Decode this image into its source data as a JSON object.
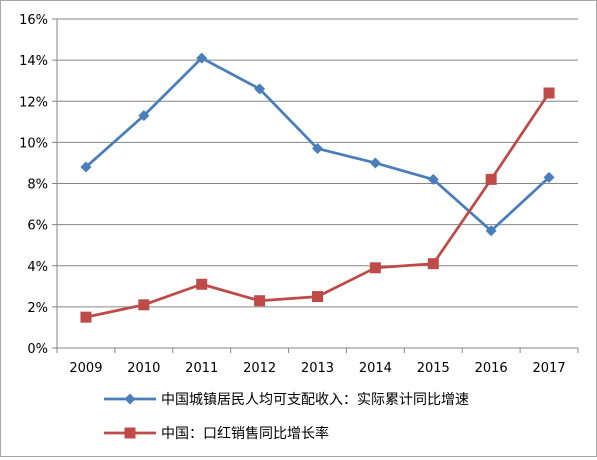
{
  "chart_data": {
    "type": "line",
    "title": "",
    "xlabel": "",
    "ylabel": "",
    "x": [
      "2009",
      "2010",
      "2011",
      "2012",
      "2013",
      "2014",
      "2015",
      "2016",
      "2017"
    ],
    "ylim": [
      0,
      16
    ],
    "y_ticks": [
      "0%",
      "2%",
      "4%",
      "6%",
      "8%",
      "10%",
      "12%",
      "14%",
      "16%"
    ],
    "y_tick_values": [
      0,
      2,
      4,
      6,
      8,
      10,
      12,
      14,
      16
    ],
    "grid": true,
    "legend_position": "bottom",
    "series": [
      {
        "name": "中国城镇居民人均可支配收入：实际累计同比增速",
        "color": "#4a7ebb",
        "marker": "diamond",
        "values": [
          8.8,
          11.3,
          14.1,
          12.6,
          9.7,
          9.0,
          8.2,
          5.7,
          8.3
        ]
      },
      {
        "name": "中国：口红销售同比增长率",
        "color": "#be4b48",
        "marker": "square",
        "values": [
          1.5,
          2.1,
          3.1,
          2.3,
          2.5,
          3.9,
          4.1,
          8.2,
          12.4
        ]
      }
    ]
  }
}
